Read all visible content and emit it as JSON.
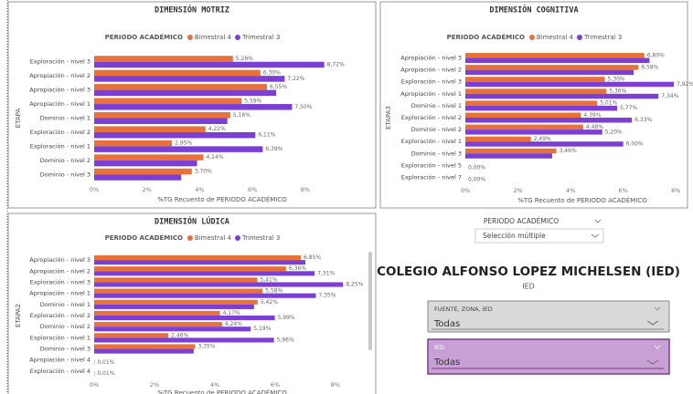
{
  "chart_data": [
    {
      "type": "bar",
      "orientation": "horizontal",
      "title": "DIMENSIÓN MOTRIZ",
      "legend_title": "PERIODO ACADÉMICO",
      "x_label": "%TG Recuento de PERIODO ACADÉMICO",
      "y_label": "ETAPA",
      "grid": false,
      "categories": [
        "Exploración - nivel 3",
        "Apropiación - nivel 2",
        "Apropiación - nivel 3",
        "Apropiación - nivel 1",
        "Dominio - nivel 1",
        "Exploración - nivel 2",
        "Exploración - nivel 1",
        "Dominio - nivel 2",
        "Dominio - nivel 3"
      ],
      "series": [
        {
          "name": "Bimestral 4",
          "color": "#e8703a",
          "values": [
            5.26,
            6.3,
            6.55,
            5.59,
            5.16,
            4.22,
            2.95,
            4.14,
            3.7
          ],
          "value_labels": [
            "5,26%",
            "6,30%",
            "6,55%",
            "5,59%",
            "5,16%",
            "4,22%",
            "2,95%",
            "4,14%",
            "3,70%"
          ]
        },
        {
          "name": "Trimestral 3",
          "color": "#7b3fd4",
          "values": [
            8.72,
            7.22,
            6.9,
            7.5,
            5.05,
            6.11,
            6.39,
            3.9,
            3.3
          ],
          "value_labels": [
            "8,72%",
            "7,22%",
            null,
            "7,50%",
            null,
            "6,11%",
            "6,39%",
            null,
            null
          ]
        }
      ],
      "xlim": [
        0,
        10.5
      ],
      "xticks": [
        {
          "value": 0,
          "label": "0%"
        },
        {
          "value": 2,
          "label": "2%"
        },
        {
          "value": 4,
          "label": "4%"
        },
        {
          "value": 6,
          "label": "6%"
        },
        {
          "value": 8,
          "label": "8%"
        }
      ]
    },
    {
      "type": "bar",
      "orientation": "horizontal",
      "title": "DIMENSIÓN COGNITIVA",
      "legend_title": "PERIODO ACADÉMICO",
      "x_label": "%TG Recuento de PERIODO ACADÉMICO",
      "y_label": "ETAPA3",
      "grid": false,
      "categories": [
        "Apropiación - nivel 3",
        "Apropiación - nivel 2",
        "Exploración - nivel 3",
        "Apropiación - nivel 1",
        "Dominio - nivel 1",
        "Exploración - nivel 2",
        "Dominio - nivel 2",
        "Exploración - nivel 1",
        "Dominio - nivel 3",
        "Exploración - nivel 5",
        "Exploración - nivel 7"
      ],
      "series": [
        {
          "name": "Bimestral 4",
          "color": "#e8703a",
          "values": [
            6.8,
            6.58,
            5.3,
            5.36,
            5.01,
            4.39,
            4.48,
            2.49,
            3.46,
            0,
            0
          ],
          "value_labels": [
            "6,80%",
            "6,58%",
            "5,30%",
            "5,36%",
            "5,01%",
            "4,39%",
            "4,48%",
            "2,49%",
            "3,46%",
            null,
            null
          ]
        },
        {
          "name": "Trimestral 3",
          "color": "#7b3fd4",
          "values": [
            7.0,
            6.4,
            7.92,
            7.34,
            5.77,
            6.33,
            5.2,
            6.0,
            3.3,
            0.0,
            0.0
          ],
          "value_labels": [
            null,
            null,
            "7,92%",
            "7,34%",
            "5,77%",
            "6,33%",
            "5,20%",
            "6,00%",
            null,
            "0,00%",
            "0,00%"
          ]
        }
      ],
      "xlim": [
        0,
        8.2
      ],
      "xticks": [
        {
          "value": 0,
          "label": "0%"
        },
        {
          "value": 2,
          "label": "2%"
        },
        {
          "value": 4,
          "label": "4%"
        },
        {
          "value": 6,
          "label": "6%"
        },
        {
          "value": 8,
          "label": "8%"
        }
      ]
    },
    {
      "type": "bar",
      "orientation": "horizontal",
      "title": "DIMENSIÓN LÚDICA",
      "legend_title": "PERIODO ACADÉMICO",
      "x_label": "%TG Recuento de PERIODO ACADÉMICO",
      "y_label": "ETAPA2",
      "grid": false,
      "categories": [
        "Apropiación - nivel 3",
        "Apropiación - nivel 2",
        "Exploración - nivel 3",
        "Apropiación - nivel 1",
        "Dominio - nivel 1",
        "Exploración - nivel 2",
        "Dominio - nivel 2",
        "Exploración - nivel 1",
        "Dominio - nivel 3",
        "Apropiación - nivel 4",
        "Exploración - nivel 4"
      ],
      "series": [
        {
          "name": "Bimestral 4",
          "color": "#e8703a",
          "values": [
            6.85,
            6.36,
            5.41,
            5.58,
            5.42,
            4.17,
            4.24,
            2.46,
            3.35,
            0,
            0
          ],
          "value_labels": [
            "6,85%",
            "6,36%",
            "5,41%",
            "5,58%",
            "5,42%",
            "4,17%",
            "4,24%",
            "2,46%",
            "3,35%",
            null,
            null
          ]
        },
        {
          "name": "Trimestral 3",
          "color": "#7b3fd4",
          "values": [
            7.0,
            7.31,
            8.25,
            7.35,
            5.3,
            5.99,
            5.19,
            5.96,
            3.3,
            0.01,
            0.01
          ],
          "value_labels": [
            null,
            "7,31%",
            "8,25%",
            "7,35%",
            null,
            "5,99%",
            "5,19%",
            "5,96%",
            null,
            "0,01%",
            "0,01%"
          ]
        }
      ],
      "xlim": [
        0,
        8.85
      ],
      "xticks": [
        {
          "value": 0,
          "label": "0%"
        },
        {
          "value": 2,
          "label": "2%"
        },
        {
          "value": 4,
          "label": "4%"
        },
        {
          "value": 6,
          "label": "6%"
        },
        {
          "value": 8,
          "label": "8%"
        }
      ]
    }
  ],
  "filters": {
    "period_label": "PERIODO ACADÉMICO",
    "period_value": "Selección múltiple",
    "school_title": "COLEGIO ALFONSO LOPEZ MICHELSEN (IED)",
    "school_subtitle": "IED",
    "slicers": [
      {
        "label": "FUENTE, ZONA, IED",
        "value": "Todas"
      },
      {
        "label": "IED",
        "value": "Todas"
      }
    ]
  }
}
